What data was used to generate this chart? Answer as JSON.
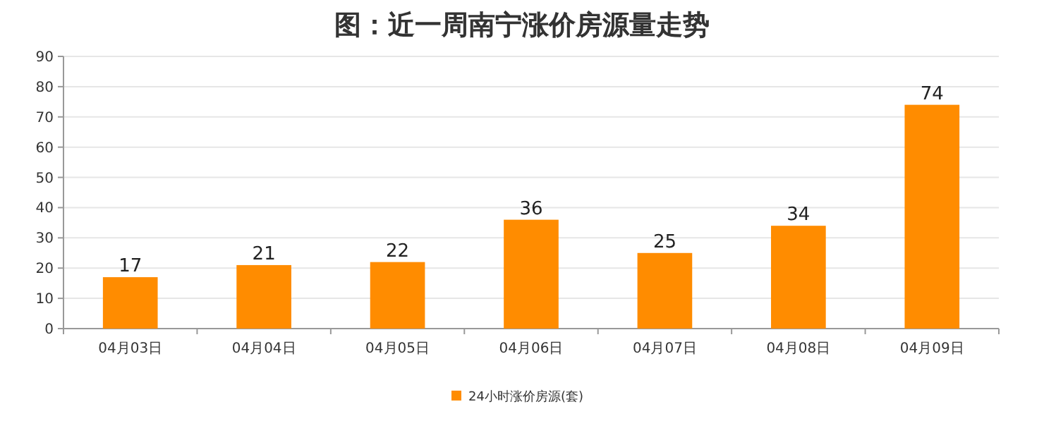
{
  "chart_data": {
    "type": "bar",
    "title": "图：近一周南宁涨价房源量走势",
    "categories": [
      "04月03日",
      "04月04日",
      "04月05日",
      "04月06日",
      "04月07日",
      "04月08日",
      "04月09日"
    ],
    "series": [
      {
        "name": "24小时涨价房源(套)",
        "color": "#ff8c00",
        "values": [
          17,
          21,
          22,
          36,
          25,
          34,
          74
        ]
      }
    ],
    "ylim": [
      0,
      90
    ],
    "yticks": [
      0,
      10,
      20,
      30,
      40,
      50,
      60,
      70,
      80,
      90
    ],
    "grid": "y",
    "legend": "bottom",
    "data_labels": true
  }
}
